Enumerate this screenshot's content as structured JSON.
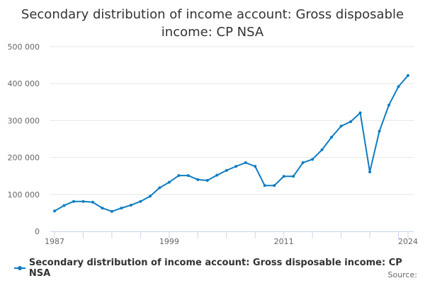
{
  "title": "Secondary distribution of income account: Gross disposable income: CP NSA",
  "legend": {
    "label": "Secondary distribution of income account: Gross disposable income: CP NSA",
    "color": "#0f7dc2"
  },
  "source_label": "Source:",
  "chart_data": {
    "type": "line",
    "title": "Secondary distribution of income account: Gross disposable income: CP NSA",
    "xlabel": "",
    "ylabel": "",
    "ylim": [
      0,
      500000
    ],
    "yticks": [
      0,
      100000,
      200000,
      300000,
      400000,
      500000
    ],
    "ytick_labels": [
      "0",
      "100 000",
      "200 000",
      "300 000",
      "400 000",
      "500 000"
    ],
    "xtick_labels": [
      "1987",
      "1999",
      "2011",
      "2024"
    ],
    "grid": true,
    "legend_position": "bottom",
    "x": [
      1987,
      1988,
      1989,
      1990,
      1991,
      1992,
      1993,
      1994,
      1995,
      1996,
      1997,
      1998,
      1999,
      2000,
      2001,
      2002,
      2003,
      2004,
      2005,
      2006,
      2007,
      2008,
      2009,
      2010,
      2011,
      2012,
      2013,
      2014,
      2015,
      2016,
      2017,
      2018,
      2019,
      2020,
      2021,
      2022,
      2023,
      2024
    ],
    "series": [
      {
        "name": "Secondary distribution of income account: Gross disposable income: CP NSA",
        "color": "#0f7dc2",
        "values": [
          55000,
          70000,
          81000,
          81000,
          79000,
          63000,
          54000,
          63000,
          71000,
          81000,
          95000,
          118000,
          133000,
          151000,
          151000,
          140000,
          138000,
          152000,
          165000,
          176000,
          186000,
          176000,
          124000,
          124000,
          149000,
          149000,
          186000,
          195000,
          221000,
          255000,
          285000,
          297000,
          321000,
          161000,
          271000,
          342000,
          392000,
          422000
        ]
      }
    ]
  }
}
